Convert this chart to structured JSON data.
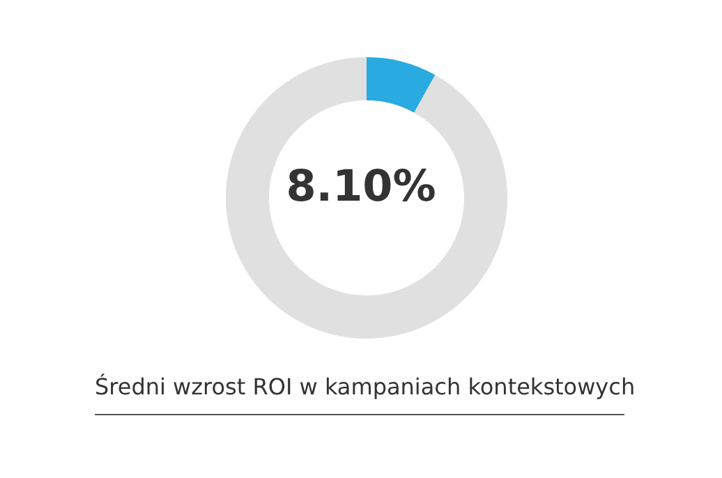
{
  "chart_data": {
    "type": "donut",
    "title": "Średni wzrost ROI w kampaniach kontekstowych",
    "categories": [
      null,
      null
    ],
    "values": [
      8.1,
      91.9
    ],
    "colors": [
      "#29aae1",
      "#e0e0e0"
    ],
    "annotations": [
      "8.10%"
    ]
  }
}
